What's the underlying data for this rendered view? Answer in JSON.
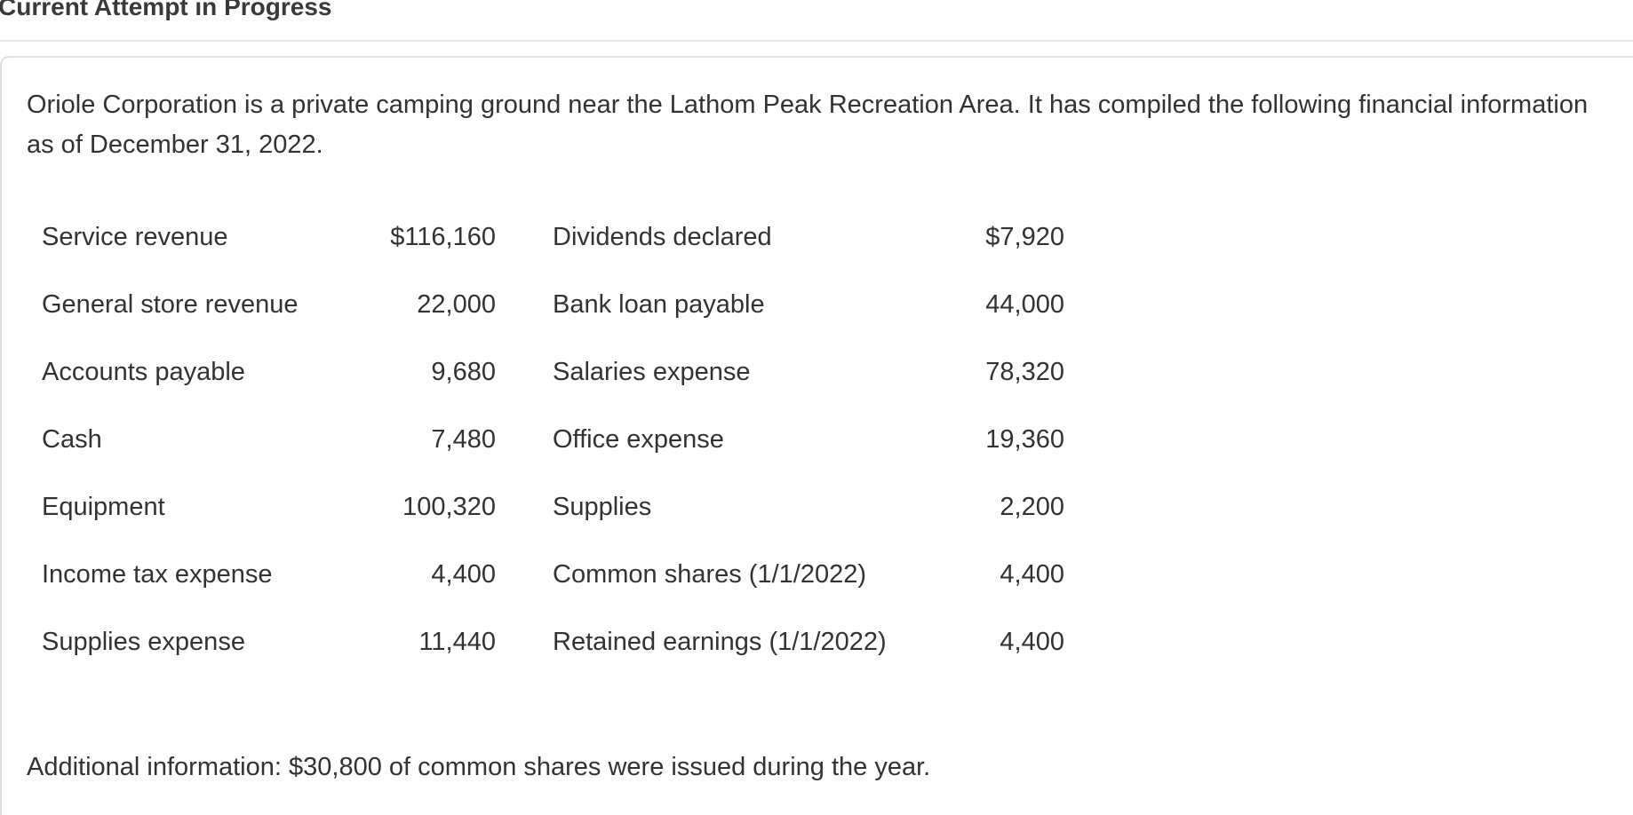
{
  "header": {
    "title": "Current Attempt in Progress"
  },
  "intro_text": "Oriole Corporation is a private camping ground near the Lathom Peak Recreation Area. It has compiled the following financial information as of December 31, 2022.",
  "financial_items": [
    {
      "left_label": "Service revenue",
      "left_value": "$116,160",
      "right_label": "Dividends declared",
      "right_value": "$7,920"
    },
    {
      "left_label": "General store revenue",
      "left_value": "22,000",
      "right_label": "Bank loan payable",
      "right_value": "44,000"
    },
    {
      "left_label": "Accounts payable",
      "left_value": "9,680",
      "right_label": "Salaries expense",
      "right_value": "78,320"
    },
    {
      "left_label": "Cash",
      "left_value": "7,480",
      "right_label": "Office expense",
      "right_value": "19,360"
    },
    {
      "left_label": "Equipment",
      "left_value": "100,320",
      "right_label": "Supplies",
      "right_value": "2,200"
    },
    {
      "left_label": "Income tax expense",
      "left_value": "4,400",
      "right_label": "Common shares (1/1/2022)",
      "right_value": "4,400"
    },
    {
      "left_label": "Supplies expense",
      "left_value": "11,440",
      "right_label": "Retained earnings (1/1/2022)",
      "right_value": "4,400"
    }
  ],
  "additional_info": "Additional information: $30,800 of common shares were issued during the year."
}
